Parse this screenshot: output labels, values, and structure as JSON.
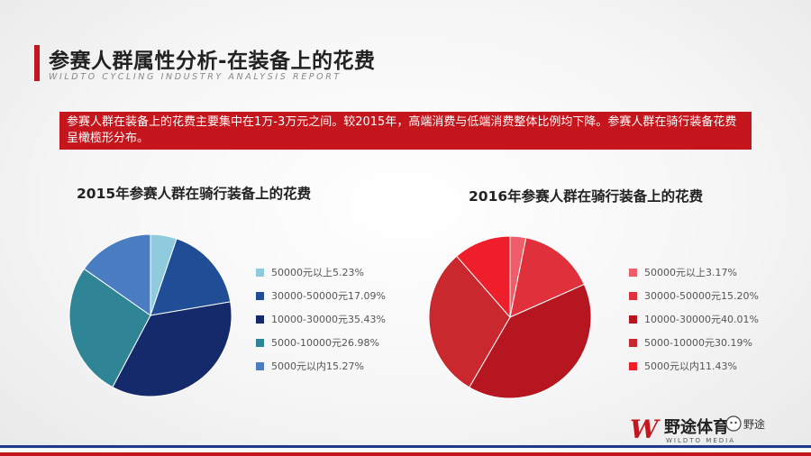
{
  "header": {
    "title": "参赛人群属性分析-在装备上的花费",
    "subtitle": "WILDTO CYCLING INDUSTRY ANALYSIS REPORT"
  },
  "summary": "参赛人群在装备上的花费主要集中在1万-3万元之间。较2015年，高端消费与低端消费整体比例均下降。参赛人群在骑行装备花费呈橄榄形分布。",
  "chart_data": [
    {
      "type": "pie",
      "title": "2015年参赛人群在骑行装备上的花费",
      "labels": [
        "50000元以上",
        "30000-50000元",
        "10000-30000元",
        "5000-10000元",
        "5000元以内"
      ],
      "values": [
        5.23,
        17.09,
        35.43,
        26.98,
        15.27
      ],
      "value_texts": [
        "5.23%",
        "17.09%",
        "35.43%",
        "26.98%",
        "15.27%"
      ],
      "colors": [
        "#8ecbdc",
        "#1f4e96",
        "#142a6a",
        "#2f8596",
        "#4a7cc2"
      ],
      "legend": "right"
    },
    {
      "type": "pie",
      "title": "2016年参赛人群在骑行装备上的花费",
      "labels": [
        "50000元以上",
        "30000-50000元",
        "10000-30000元",
        "5000-10000元",
        "5000元以内"
      ],
      "values": [
        3.17,
        15.2,
        40.01,
        30.19,
        11.43
      ],
      "value_texts": [
        "3.17%",
        "15.20%",
        "40.01%",
        "30.19%",
        "11.43%"
      ],
      "colors": [
        "#ee5e68",
        "#e0303b",
        "#b5161f",
        "#c8282e",
        "#ee1f2b"
      ],
      "legend": "right"
    }
  ],
  "branding": {
    "logo_text": "野途体育",
    "logo_subtext": "WILDTO MEDIA",
    "wechat_label": "野途",
    "colors": {
      "accent": "#c4161c",
      "navy": "#1e3a8a"
    }
  }
}
